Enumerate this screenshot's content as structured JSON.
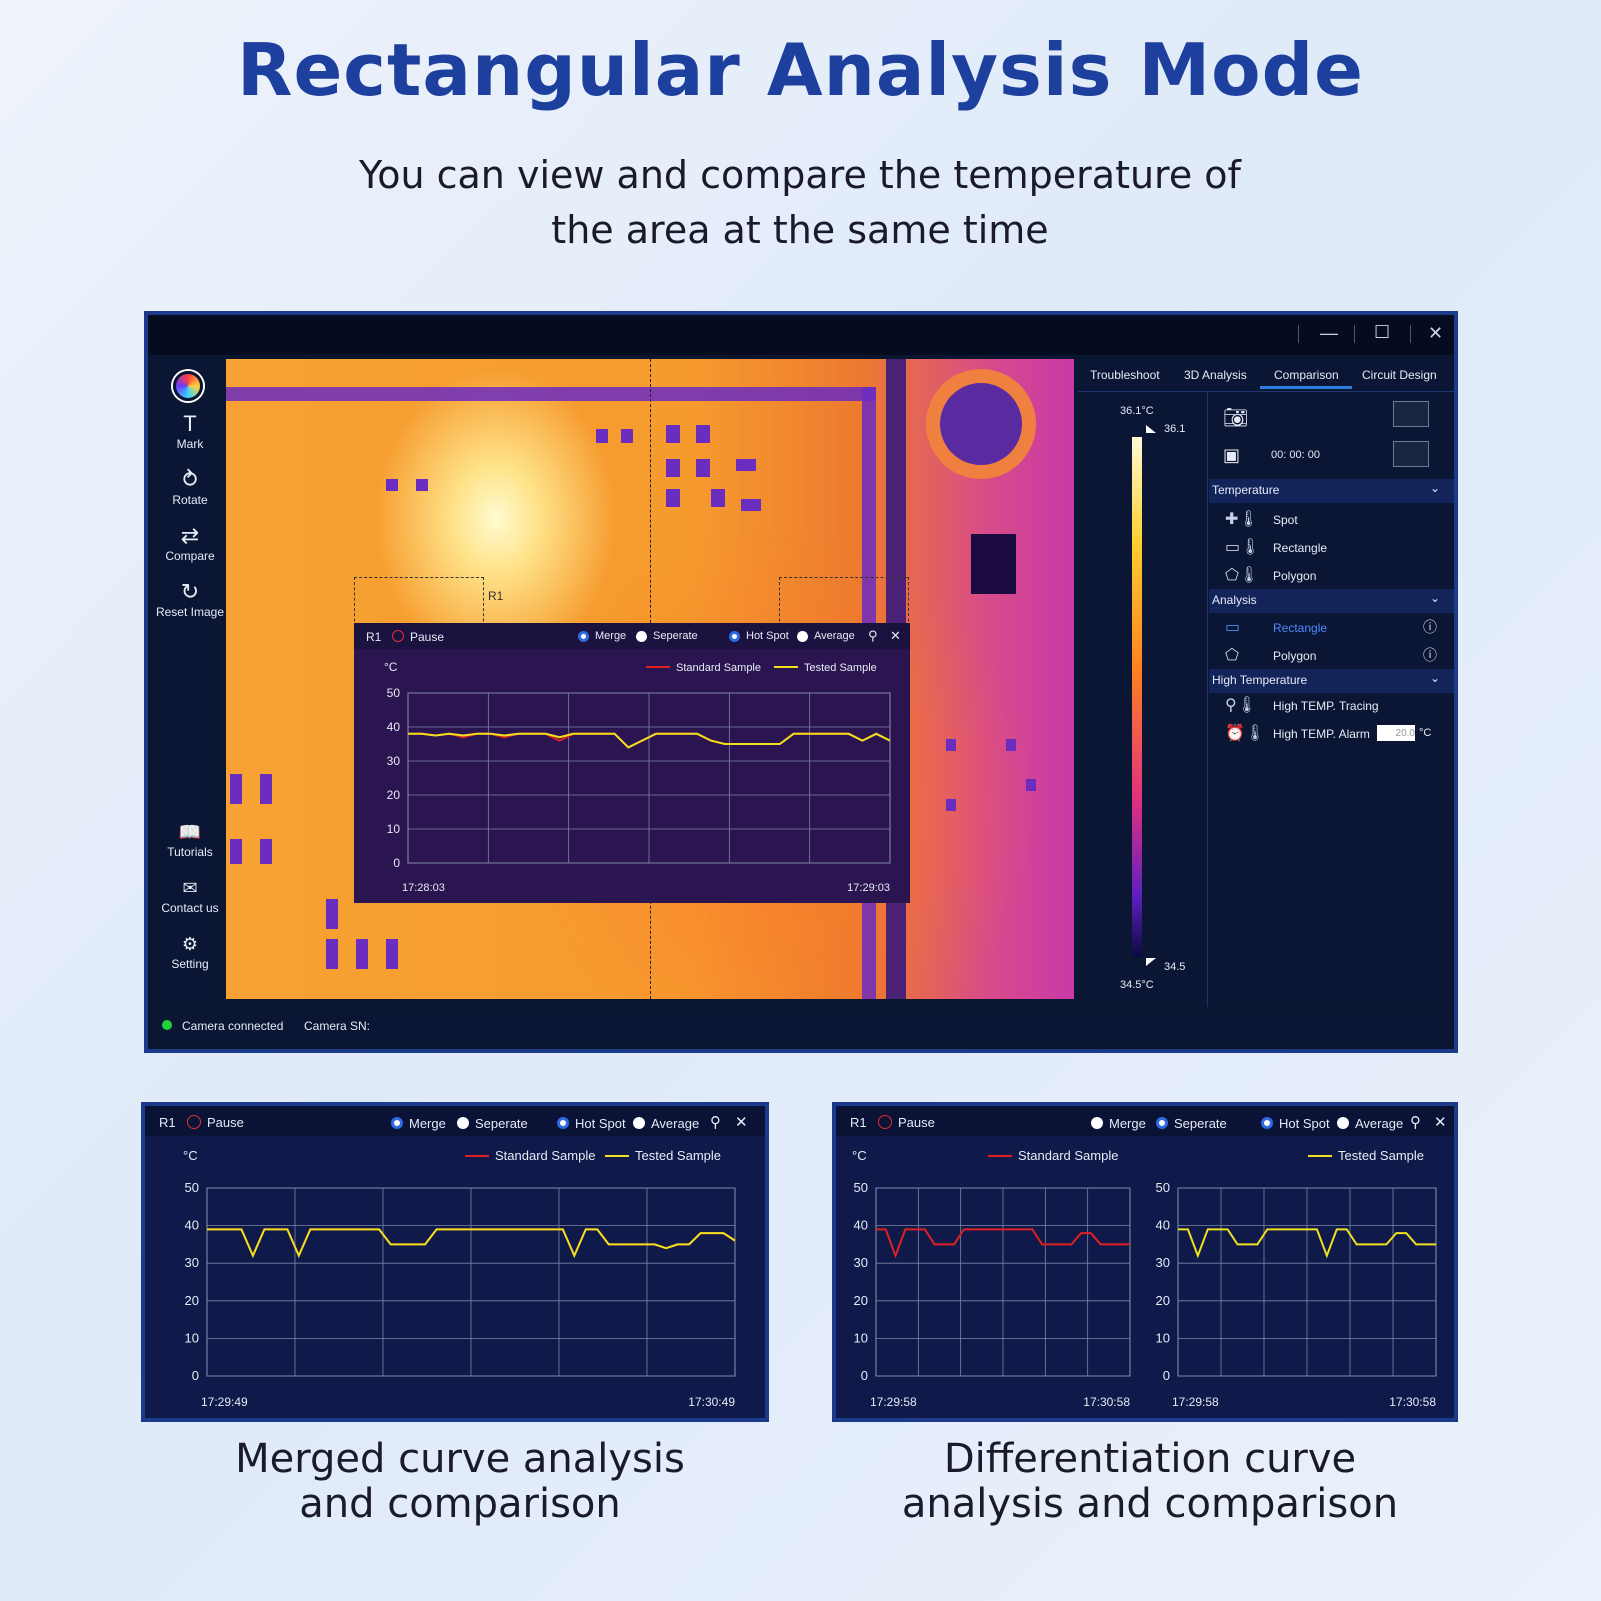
{
  "headline": "Rectangular Analysis Mode",
  "subtitle_line1": "You can view and compare the temperature of",
  "subtitle_line2": "the area at the same time",
  "caption_left_line1": "Merged curve analysis",
  "caption_left_line2": "and comparison",
  "caption_right_line1": "Differentiation curve",
  "caption_right_line2": "analysis and comparison",
  "window": {
    "controls": {
      "minimize": "—",
      "maximize": "☐",
      "close": "✕"
    },
    "left_tools": [
      {
        "label": "Mark",
        "icon": "text-mark-icon",
        "glyph": "T"
      },
      {
        "label": "Rotate",
        "icon": "rotate-icon",
        "glyph": "⥁"
      },
      {
        "label": "Compare",
        "icon": "compare-icon",
        "glyph": "⇄"
      },
      {
        "label": "Reset Image",
        "icon": "reset-icon",
        "glyph": "↻"
      }
    ],
    "bottom_tools": [
      {
        "label": "Tutorials",
        "icon": "book-icon",
        "glyph": "📖"
      },
      {
        "label": "Contact us",
        "icon": "mail-icon",
        "glyph": "✉"
      },
      {
        "label": "Setting",
        "icon": "gear-icon",
        "glyph": "⚙"
      }
    ],
    "rect_label": "R1",
    "tabs": [
      "Troubleshoot",
      "3D Analysis",
      "Comparison",
      "Circuit Design"
    ],
    "active_tab": "Comparison",
    "scale": {
      "max_label": "36.1°C",
      "max_marker": "36.1",
      "min_label": "34.5°C",
      "min_marker": "34.5"
    },
    "record_time": "00: 00: 00",
    "sections": {
      "temperature": {
        "title": "Temperature",
        "items": [
          "Spot",
          "Rectangle",
          "Polygon"
        ]
      },
      "analysis": {
        "title": "Analysis",
        "items": [
          "Rectangle",
          "Polygon"
        ]
      },
      "high_temp": {
        "title": "High Temperature",
        "items": [
          "High TEMP. Tracing",
          "High TEMP. Alarm"
        ],
        "alarm_value": "20.0",
        "alarm_unit": "°C"
      }
    },
    "status": {
      "connection": "Camera connected",
      "sn_label": "Camera SN:"
    }
  },
  "graph_common": {
    "rect": "R1",
    "pause": "Pause",
    "merge": "Merge",
    "seperate": "Seperate",
    "hotspot": "Hot Spot",
    "average": "Average",
    "unit": "°C",
    "std": "Standard Sample",
    "tested": "Tested Sample",
    "colors": {
      "std": "#e02020",
      "tested": "#f0e020"
    }
  },
  "chart_data": [
    {
      "type": "line",
      "title": "",
      "ylabel": "°C",
      "ylim": [
        0,
        50
      ],
      "yticks": [
        0,
        10,
        20,
        30,
        40,
        50
      ],
      "x_start": "17:28:03",
      "x_end": "17:29:03",
      "series": [
        {
          "name": "Standard Sample",
          "values": [
            38,
            38,
            37.5,
            38,
            37,
            38,
            38,
            37,
            38,
            38,
            38,
            36,
            38,
            38,
            38,
            38,
            34,
            36,
            38,
            38,
            38,
            38,
            36,
            35,
            35,
            35,
            35,
            35,
            38,
            38,
            38,
            38,
            38,
            36,
            38,
            36
          ]
        },
        {
          "name": "Tested Sample",
          "values": [
            38,
            38,
            37.5,
            38,
            37.5,
            38,
            38,
            37.5,
            38,
            38,
            38,
            37,
            38,
            38,
            38,
            38,
            34,
            36,
            38,
            38,
            38,
            38,
            36,
            35,
            35,
            35,
            35,
            35,
            38,
            38,
            38,
            38,
            38,
            36,
            38,
            36
          ]
        }
      ]
    },
    {
      "type": "line",
      "title": "",
      "ylabel": "°C",
      "ylim": [
        0,
        50
      ],
      "yticks": [
        0,
        10,
        20,
        30,
        40,
        50
      ],
      "x_start": "17:29:49",
      "x_end": "17:30:49",
      "series": [
        {
          "name": "Standard Sample",
          "values": [
            39,
            39,
            39,
            39,
            32,
            39,
            39,
            39,
            32,
            39,
            39,
            39,
            39,
            39,
            39,
            39,
            35,
            35,
            35,
            35,
            39,
            39,
            39,
            39,
            39,
            39,
            39,
            39,
            39,
            39,
            39,
            39,
            32,
            39,
            39,
            35,
            35,
            35,
            35,
            35,
            34,
            35,
            35,
            38,
            38,
            38,
            36
          ]
        },
        {
          "name": "Tested Sample",
          "values": [
            39,
            39,
            39,
            39,
            32,
            39,
            39,
            39,
            32,
            39,
            39,
            39,
            39,
            39,
            39,
            39,
            35,
            35,
            35,
            35,
            39,
            39,
            39,
            39,
            39,
            39,
            39,
            39,
            39,
            39,
            39,
            39,
            32,
            39,
            39,
            35,
            35,
            35,
            35,
            35,
            34,
            35,
            35,
            38,
            38,
            38,
            36
          ]
        }
      ]
    },
    {
      "type": "line",
      "title": "",
      "ylabel": "°C",
      "ylim": [
        0,
        50
      ],
      "yticks": [
        0,
        10,
        20,
        30,
        40,
        50
      ],
      "x_start": "17:29:58",
      "x_end": "17:30:58",
      "series": [
        {
          "name": "Standard Sample",
          "values": [
            39,
            39,
            32,
            39,
            39,
            39,
            35,
            35,
            35,
            39,
            39,
            39,
            39,
            39,
            39,
            39,
            39,
            35,
            35,
            35,
            35,
            38,
            38,
            35,
            35,
            35,
            35
          ]
        }
      ]
    },
    {
      "type": "line",
      "title": "",
      "ylabel": "°C",
      "ylim": [
        0,
        50
      ],
      "yticks": [
        0,
        10,
        20,
        30,
        40,
        50
      ],
      "x_start": "17:29:58",
      "x_end": "17:30:58",
      "series": [
        {
          "name": "Tested Sample",
          "values": [
            39,
            39,
            32,
            39,
            39,
            39,
            35,
            35,
            35,
            39,
            39,
            39,
            39,
            39,
            39,
            32,
            39,
            39,
            35,
            35,
            35,
            35,
            38,
            38,
            35,
            35,
            35
          ]
        }
      ]
    }
  ]
}
